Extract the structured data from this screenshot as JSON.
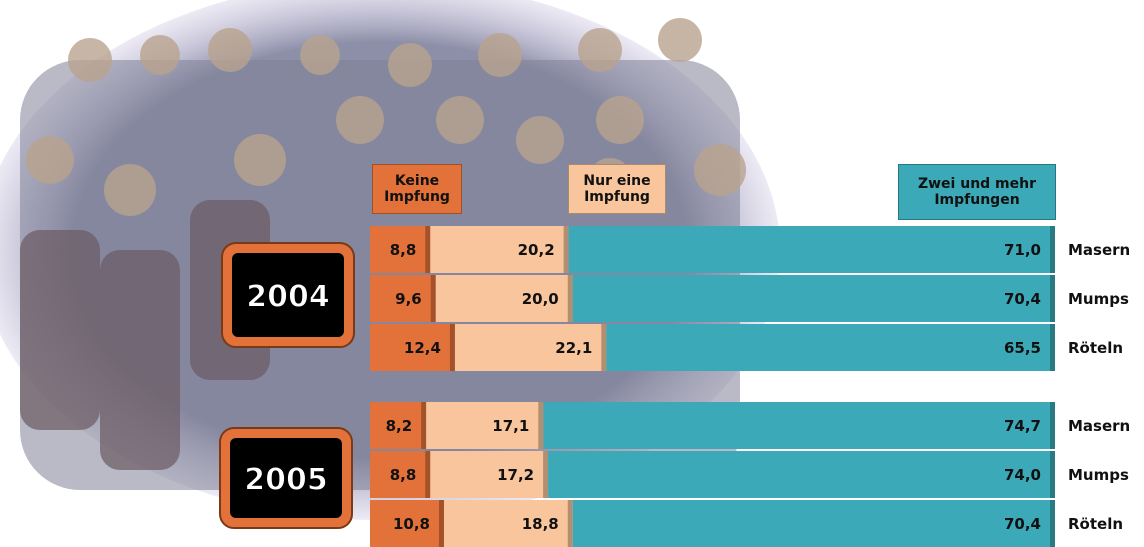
{
  "chart_data": {
    "type": "bar",
    "orientation": "horizontal",
    "stacked": true,
    "xlim": [
      0,
      100
    ],
    "series": [
      {
        "name": "Keine Impfung",
        "color": "#e2723a"
      },
      {
        "name": "Nur eine Impfung",
        "color": "#f8c59c"
      },
      {
        "name": "Zwei und mehr Impfungen",
        "color": "#3ba9b7"
      }
    ],
    "groups": [
      {
        "label": "2004",
        "categories": [
          "Masern",
          "Mumps",
          "Röteln"
        ],
        "values": [
          [
            8.8,
            9.6,
            12.4
          ],
          [
            20.2,
            20.0,
            22.1
          ],
          [
            71.0,
            70.4,
            65.5
          ]
        ],
        "value_labels": [
          [
            "8,8",
            "9,6",
            "12,4"
          ],
          [
            "20,2",
            "20,0",
            "22,1"
          ],
          [
            "71,0",
            "70,4",
            "65,5"
          ]
        ]
      },
      {
        "label": "2005",
        "categories": [
          "Masern",
          "Mumps",
          "Röteln"
        ],
        "values": [
          [
            8.2,
            8.8,
            10.8
          ],
          [
            17.1,
            17.2,
            18.8
          ],
          [
            74.7,
            74.0,
            70.4
          ]
        ],
        "value_labels": [
          [
            "8,2",
            "8,8",
            "10,8"
          ],
          [
            "17,1",
            "17,2",
            "18,8"
          ],
          [
            "74,7",
            "74,0",
            "70,4"
          ]
        ]
      }
    ]
  }
}
